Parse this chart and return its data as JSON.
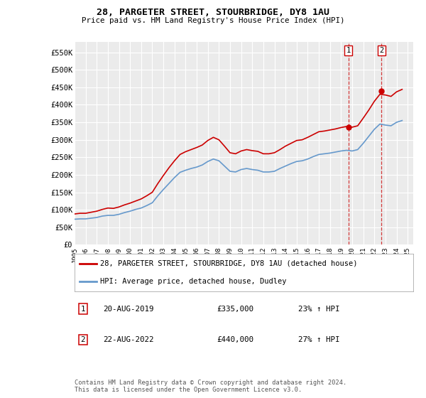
{
  "title": "28, PARGETER STREET, STOURBRIDGE, DY8 1AU",
  "subtitle": "Price paid vs. HM Land Registry's House Price Index (HPI)",
  "ylabel_ticks": [
    "£0",
    "£50K",
    "£100K",
    "£150K",
    "£200K",
    "£250K",
    "£300K",
    "£350K",
    "£400K",
    "£450K",
    "£500K",
    "£550K"
  ],
  "ytick_values": [
    0,
    50000,
    100000,
    150000,
    200000,
    250000,
    300000,
    350000,
    400000,
    450000,
    500000,
    550000
  ],
  "ylim": [
    0,
    580000
  ],
  "background_color": "#ffffff",
  "plot_bg_color": "#ebebeb",
  "grid_color": "#ffffff",
  "legend_label_red": "28, PARGETER STREET, STOURBRIDGE, DY8 1AU (detached house)",
  "legend_label_blue": "HPI: Average price, detached house, Dudley",
  "annotation1_label": "1",
  "annotation1_date": "20-AUG-2019",
  "annotation1_price": "£335,000",
  "annotation1_hpi": "23% ↑ HPI",
  "annotation2_label": "2",
  "annotation2_date": "22-AUG-2022",
  "annotation2_price": "£440,000",
  "annotation2_hpi": "27% ↑ HPI",
  "footer": "Contains HM Land Registry data © Crown copyright and database right 2024.\nThis data is licensed under the Open Government Licence v3.0.",
  "red_color": "#cc0000",
  "blue_color": "#6699cc",
  "marker1_x": 2019.65,
  "marker1_y": 335000,
  "marker2_x": 2022.65,
  "marker2_y": 440000,
  "vline1_x": 2019.65,
  "vline2_x": 2022.65,
  "hpi_data": {
    "years": [
      1995.0,
      1995.5,
      1996.0,
      1996.5,
      1997.0,
      1997.5,
      1998.0,
      1998.5,
      1999.0,
      1999.5,
      2000.0,
      2000.5,
      2001.0,
      2001.5,
      2002.0,
      2002.5,
      2003.0,
      2003.5,
      2004.0,
      2004.5,
      2005.0,
      2005.5,
      2006.0,
      2006.5,
      2007.0,
      2007.5,
      2008.0,
      2008.5,
      2009.0,
      2009.5,
      2010.0,
      2010.5,
      2011.0,
      2011.5,
      2012.0,
      2012.5,
      2013.0,
      2013.5,
      2014.0,
      2014.5,
      2015.0,
      2015.5,
      2016.0,
      2016.5,
      2017.0,
      2017.5,
      2018.0,
      2018.5,
      2019.0,
      2019.5,
      2020.0,
      2020.5,
      2021.0,
      2021.5,
      2022.0,
      2022.5,
      2023.0,
      2023.5,
      2024.0,
      2024.5
    ],
    "values": [
      73000,
      74000,
      74000,
      76000,
      78000,
      82000,
      84000,
      84000,
      87000,
      92000,
      96000,
      101000,
      105000,
      112000,
      120000,
      140000,
      158000,
      175000,
      192000,
      207000,
      213000,
      218000,
      222000,
      228000,
      238000,
      245000,
      240000,
      225000,
      210000,
      208000,
      215000,
      218000,
      215000,
      213000,
      208000,
      208000,
      210000,
      218000,
      225000,
      232000,
      238000,
      240000,
      245000,
      252000,
      258000,
      260000,
      262000,
      265000,
      268000,
      270000,
      268000,
      272000,
      290000,
      310000,
      330000,
      345000,
      342000,
      340000,
      350000,
      355000
    ]
  },
  "red_data": {
    "years": [
      1995.0,
      1995.5,
      1996.0,
      1996.5,
      1997.0,
      1997.5,
      1998.0,
      1998.5,
      1999.0,
      1999.5,
      2000.0,
      2000.5,
      2001.0,
      2001.5,
      2002.0,
      2002.5,
      2003.0,
      2003.5,
      2004.0,
      2004.5,
      2005.0,
      2005.5,
      2006.0,
      2006.5,
      2007.0,
      2007.5,
      2008.0,
      2008.5,
      2009.0,
      2009.5,
      2010.0,
      2010.5,
      2011.0,
      2011.5,
      2012.0,
      2012.5,
      2013.0,
      2013.5,
      2014.0,
      2014.5,
      2015.0,
      2015.5,
      2016.0,
      2016.5,
      2017.0,
      2017.5,
      2018.0,
      2018.5,
      2019.0,
      2019.5,
      2020.0,
      2020.5,
      2021.0,
      2021.5,
      2022.0,
      2022.5,
      2023.0,
      2023.5,
      2024.0,
      2024.5
    ],
    "values": [
      88000,
      90000,
      90000,
      93000,
      96000,
      101000,
      105000,
      104000,
      108000,
      114000,
      119000,
      125000,
      131000,
      140000,
      150000,
      175000,
      198000,
      220000,
      240000,
      258000,
      266000,
      272000,
      278000,
      285000,
      298000,
      307000,
      300000,
      282000,
      263000,
      260000,
      268000,
      272000,
      269000,
      267000,
      260000,
      260000,
      263000,
      272000,
      282000,
      290000,
      298000,
      300000,
      307000,
      315000,
      323000,
      325000,
      328000,
      331000,
      335000,
      338000,
      336000,
      340000,
      362000,
      385000,
      410000,
      430000,
      428000,
      424000,
      437000,
      444000
    ]
  },
  "xtick_years": [
    1995,
    1996,
    1997,
    1998,
    1999,
    2000,
    2001,
    2002,
    2003,
    2004,
    2005,
    2006,
    2007,
    2008,
    2009,
    2010,
    2011,
    2012,
    2013,
    2014,
    2015,
    2016,
    2017,
    2018,
    2019,
    2020,
    2021,
    2022,
    2023,
    2024,
    2025
  ]
}
